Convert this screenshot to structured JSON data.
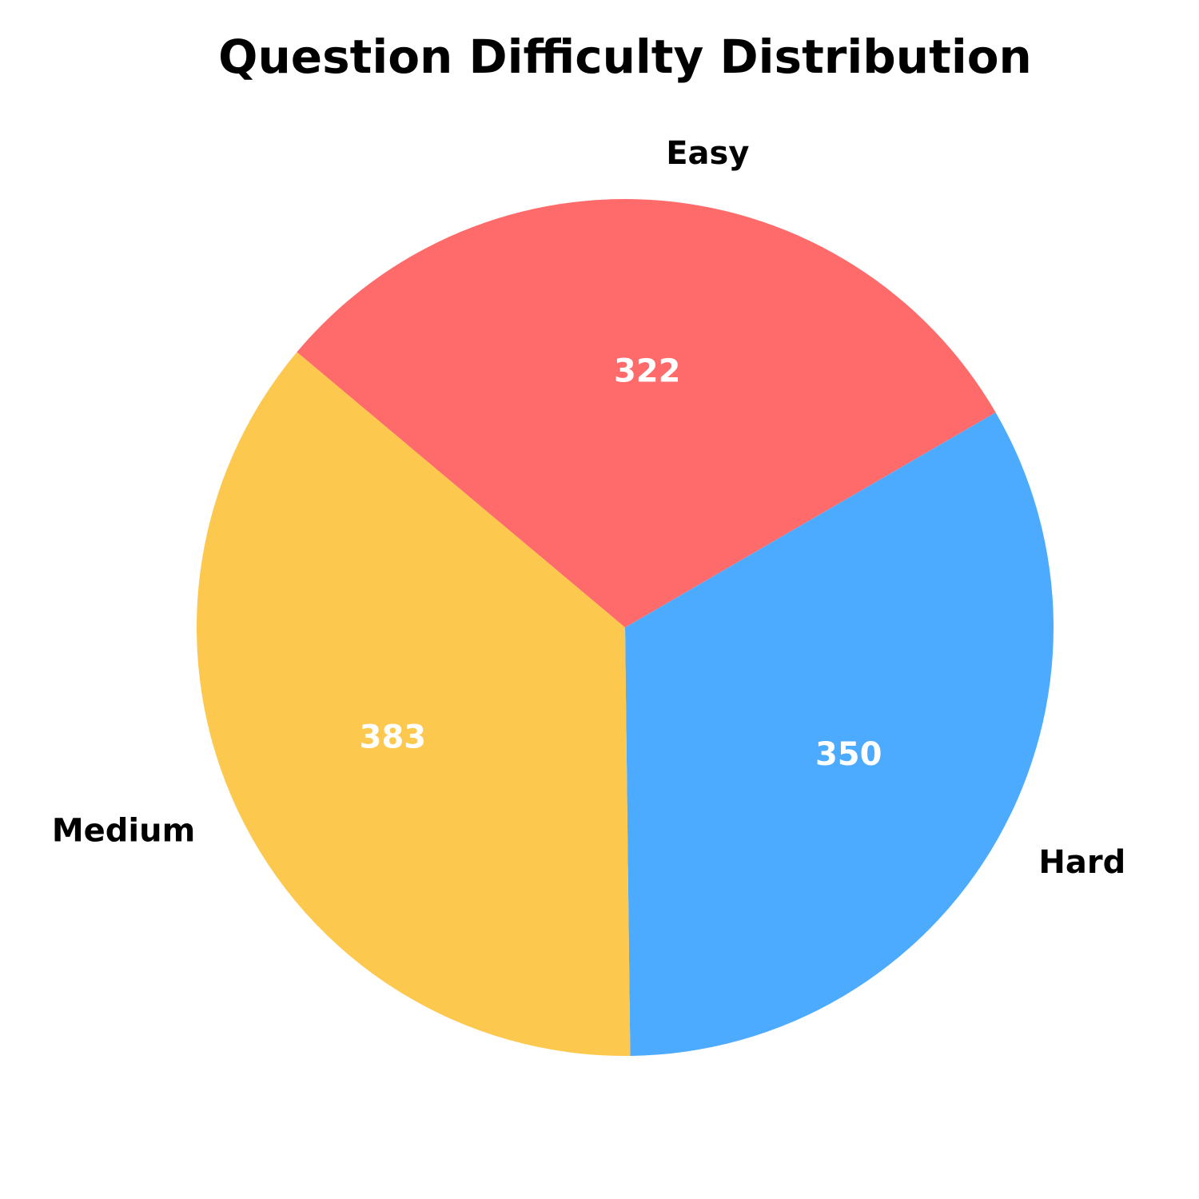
{
  "chart_data": {
    "type": "pie",
    "title": "Question Difficulty Distribution",
    "categories": [
      "Easy",
      "Hard",
      "Medium"
    ],
    "values": [
      322,
      350,
      383
    ],
    "value_labels": [
      "322",
      "350",
      "383"
    ],
    "colors": [
      "#ff6b6b",
      "#4dabff",
      "#fdc84e"
    ],
    "legend": "none",
    "grid": false
  }
}
